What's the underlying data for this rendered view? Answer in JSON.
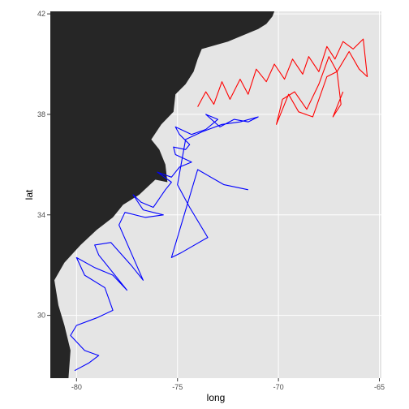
{
  "chart_data": {
    "type": "map-line",
    "xlabel": "long",
    "ylabel": "lat",
    "xlim": [
      -81.3,
      -64.9
    ],
    "ylim": [
      27.5,
      42.1
    ],
    "x_ticks": [
      -80,
      -75,
      -70,
      -65
    ],
    "y_ticks": [
      30,
      34,
      38,
      42
    ],
    "x_tick_labels": [
      "-80",
      "-75",
      "-70",
      "-65"
    ],
    "y_tick_labels": [
      "30",
      "34",
      "38",
      "42"
    ],
    "grid": true,
    "colors": {
      "panel": "#e5e5e5",
      "grid": "#ffffff",
      "land": "#262626"
    },
    "land_outline": [
      [
        -81.3,
        27.5
      ],
      [
        -80.4,
        27.5
      ],
      [
        -80.3,
        28.6
      ],
      [
        -80.6,
        29.6
      ],
      [
        -80.9,
        30.4
      ],
      [
        -81.1,
        31.4
      ],
      [
        -80.6,
        32.1
      ],
      [
        -79.8,
        32.8
      ],
      [
        -79.0,
        33.4
      ],
      [
        -78.2,
        33.9
      ],
      [
        -77.7,
        34.4
      ],
      [
        -76.9,
        34.8
      ],
      [
        -76.1,
        35.4
      ],
      [
        -75.5,
        35.3
      ],
      [
        -75.6,
        36.0
      ],
      [
        -75.9,
        36.6
      ],
      [
        -76.3,
        37.0
      ],
      [
        -75.8,
        37.6
      ],
      [
        -75.2,
        38.1
      ],
      [
        -75.1,
        38.8
      ],
      [
        -74.6,
        39.2
      ],
      [
        -74.2,
        39.7
      ],
      [
        -74.0,
        40.2
      ],
      [
        -73.8,
        40.6
      ],
      [
        -72.5,
        40.9
      ],
      [
        -71.9,
        41.1
      ],
      [
        -71.0,
        41.4
      ],
      [
        -70.6,
        41.6
      ],
      [
        -70.3,
        41.9
      ],
      [
        -70.2,
        42.1
      ],
      [
        -81.3,
        42.1
      ]
    ],
    "series": [
      {
        "name": "blue track",
        "color": "#0000ff",
        "x": [
          -80.1,
          -79.4,
          -78.9,
          -79.6,
          -80.3,
          -80.0,
          -79.0,
          -78.2,
          -78.6,
          -79.6,
          -80.0,
          -79.1,
          -78.2,
          -77.5,
          -78.9,
          -79.1,
          -78.3,
          -77.3,
          -76.7,
          -77.9,
          -77.6,
          -76.6,
          -75.7,
          -76.7,
          -77.2,
          -76.8,
          -76.2,
          -75.6,
          -75.3,
          -76.0,
          -75.3,
          -74.9,
          -74.3,
          -75.1,
          -75.2,
          -74.6,
          -74.4,
          -74.9,
          -75.1,
          -74.3,
          -73.6,
          -73.0,
          -73.6,
          -72.9,
          -72.2,
          -71.5,
          -71.0,
          -71.9,
          -72.8,
          -73.8,
          -74.6,
          -75.0,
          -74.4,
          -73.5,
          -74.8,
          -75.3,
          -74.0,
          -72.7,
          -71.5
        ],
        "y": [
          27.8,
          28.1,
          28.4,
          28.6,
          29.2,
          29.6,
          29.9,
          30.2,
          31.1,
          31.6,
          32.3,
          31.9,
          31.6,
          31.0,
          32.4,
          32.8,
          32.9,
          32.0,
          31.4,
          33.6,
          34.1,
          33.9,
          34.0,
          34.2,
          34.8,
          34.5,
          34.3,
          35.0,
          35.3,
          35.7,
          35.5,
          35.9,
          36.1,
          36.4,
          36.7,
          36.6,
          36.8,
          37.2,
          37.5,
          37.2,
          37.4,
          37.8,
          38.0,
          37.5,
          37.8,
          37.7,
          37.9,
          37.7,
          37.6,
          37.3,
          37.0,
          35.2,
          34.3,
          33.1,
          32.5,
          32.3,
          35.8,
          35.2,
          35.0
        ]
      },
      {
        "name": "red track",
        "color": "#ff0000",
        "x": [
          -74.0,
          -73.6,
          -73.2,
          -72.8,
          -72.4,
          -71.9,
          -71.5,
          -71.1,
          -70.6,
          -70.2,
          -69.7,
          -69.3,
          -68.8,
          -68.5,
          -68.0,
          -67.6,
          -67.2,
          -66.8,
          -66.3,
          -65.8,
          -65.6,
          -66.0,
          -66.5,
          -67.1,
          -67.5,
          -68.0,
          -68.6,
          -69.2,
          -69.8,
          -70.1,
          -69.5,
          -69.0,
          -68.3,
          -67.6,
          -67.1,
          -66.9,
          -67.3,
          -66.8
        ],
        "y": [
          38.3,
          38.9,
          38.4,
          39.3,
          38.6,
          39.4,
          38.8,
          39.8,
          39.3,
          40.0,
          39.4,
          40.2,
          39.6,
          40.3,
          39.7,
          40.7,
          40.2,
          40.9,
          40.6,
          41.0,
          39.5,
          39.8,
          40.5,
          39.7,
          40.3,
          39.2,
          38.2,
          38.9,
          38.6,
          37.6,
          38.8,
          38.1,
          37.9,
          39.5,
          39.7,
          38.4,
          37.9,
          38.9
        ]
      }
    ]
  }
}
